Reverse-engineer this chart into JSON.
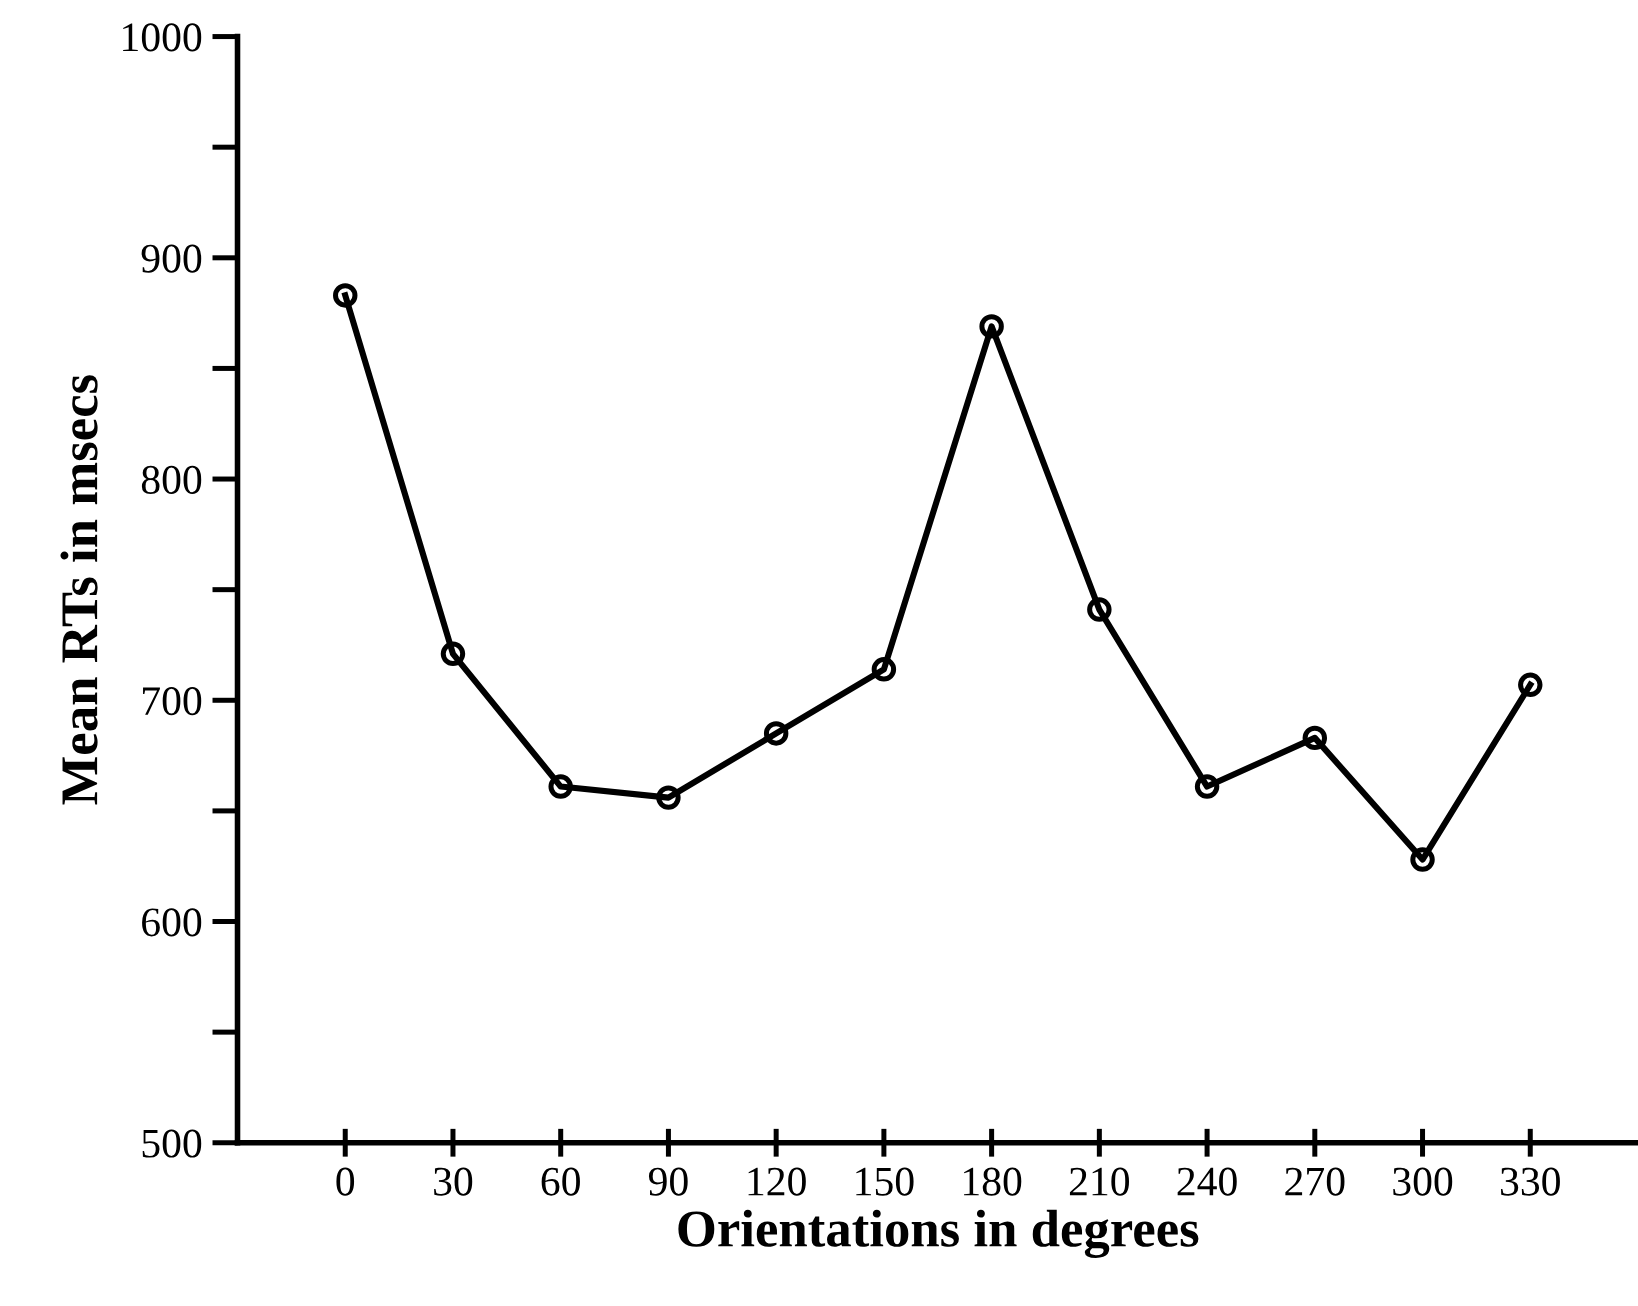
{
  "chart_data": {
    "type": "line",
    "xlabel": "Orientations in degrees",
    "ylabel": "Mean RTs in msecs",
    "x": [
      0,
      30,
      60,
      90,
      120,
      150,
      180,
      210,
      240,
      270,
      300,
      330
    ],
    "series": [
      {
        "color": "#000000",
        "values": [
          883,
          721,
          661,
          656,
          685,
          714,
          869,
          741,
          661,
          683,
          628,
          707
        ]
      }
    ],
    "xlim": [
      -30,
      360
    ],
    "xticks": [
      0,
      30,
      60,
      90,
      120,
      150,
      180,
      210,
      240,
      270,
      300,
      330
    ],
    "ylim": [
      500,
      1000
    ],
    "yticks": [
      500,
      {
        "value": 550,
        "label": null
      },
      600,
      {
        "value": 650,
        "label": null
      },
      700,
      {
        "value": 750,
        "label": null
      },
      800,
      {
        "value": 850,
        "label": null
      },
      900,
      {
        "value": 950,
        "label": null
      },
      1000
    ],
    "marker": "circle",
    "line_style": "solid",
    "grid": false,
    "legend": false
  }
}
